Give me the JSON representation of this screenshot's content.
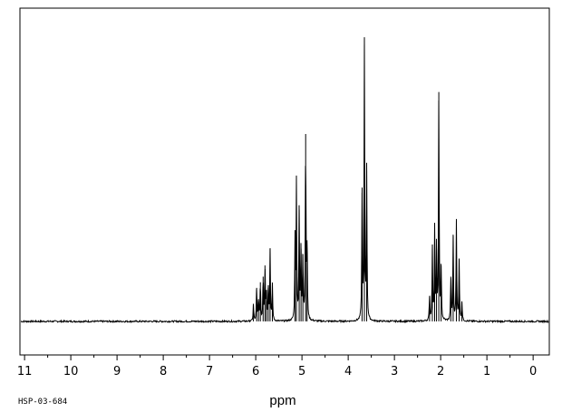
{
  "chart_data": {
    "type": "line",
    "title": "",
    "xlabel": "ppm",
    "ylabel": "",
    "xlim": [
      11.1,
      -0.35
    ],
    "ylim": [
      -0.12,
      1.12
    ],
    "x_reversed": true,
    "ticks": [
      11,
      10,
      9,
      8,
      7,
      6,
      5,
      4,
      3,
      2,
      1,
      0
    ],
    "grid": false,
    "legend": "none",
    "line_color": "#000000",
    "baseline_intensity": 0,
    "peaks": [
      {
        "x": 6.05,
        "y": 0.06
      },
      {
        "x": 5.98,
        "y": 0.12
      },
      {
        "x": 5.94,
        "y": 0.08
      },
      {
        "x": 5.9,
        "y": 0.14
      },
      {
        "x": 5.84,
        "y": 0.16
      },
      {
        "x": 5.8,
        "y": 0.2
      },
      {
        "x": 5.77,
        "y": 0.1
      },
      {
        "x": 5.73,
        "y": 0.12
      },
      {
        "x": 5.69,
        "y": 0.26
      },
      {
        "x": 5.64,
        "y": 0.13
      },
      {
        "x": 5.15,
        "y": 0.29
      },
      {
        "x": 5.12,
        "y": 0.49
      },
      {
        "x": 5.06,
        "y": 0.4
      },
      {
        "x": 5.02,
        "y": 0.26
      },
      {
        "x": 4.98,
        "y": 0.24
      },
      {
        "x": 4.92,
        "y": 0.67
      },
      {
        "x": 4.89,
        "y": 0.29
      },
      {
        "x": 3.7,
        "y": 0.46
      },
      {
        "x": 3.65,
        "y": 0.99
      },
      {
        "x": 3.6,
        "y": 0.54
      },
      {
        "x": 2.24,
        "y": 0.09
      },
      {
        "x": 2.18,
        "y": 0.26
      },
      {
        "x": 2.13,
        "y": 0.33
      },
      {
        "x": 2.09,
        "y": 0.26
      },
      {
        "x": 2.04,
        "y": 0.82
      },
      {
        "x": 1.99,
        "y": 0.2
      },
      {
        "x": 1.78,
        "y": 0.16
      },
      {
        "x": 1.73,
        "y": 0.31
      },
      {
        "x": 1.66,
        "y": 0.36
      },
      {
        "x": 1.6,
        "y": 0.22
      },
      {
        "x": 1.54,
        "y": 0.07
      }
    ]
  },
  "footer": {
    "code": "HSP-03-684"
  }
}
